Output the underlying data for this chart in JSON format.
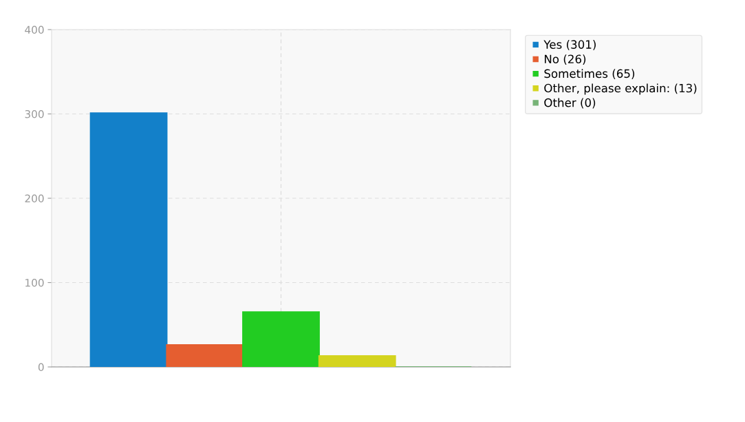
{
  "chart_data": {
    "type": "bar",
    "categories": [
      null
    ],
    "series": [
      {
        "name": "Yes (301)",
        "color": "#1380c9",
        "values": [
          301
        ]
      },
      {
        "name": "No (26)",
        "color": "#e55e30",
        "values": [
          26
        ]
      },
      {
        "name": "Sometimes (65)",
        "color": "#22cc22",
        "values": [
          65
        ]
      },
      {
        "name": "Other, please explain: (13)",
        "color": "#d4d41f",
        "values": [
          13
        ]
      },
      {
        "name": "Other (0)",
        "color": "#77b377",
        "values": [
          0
        ]
      }
    ],
    "ylim": [
      0,
      400
    ],
    "yticks": [
      0,
      100,
      200,
      300,
      400
    ],
    "grid": true,
    "legend": "top right"
  }
}
